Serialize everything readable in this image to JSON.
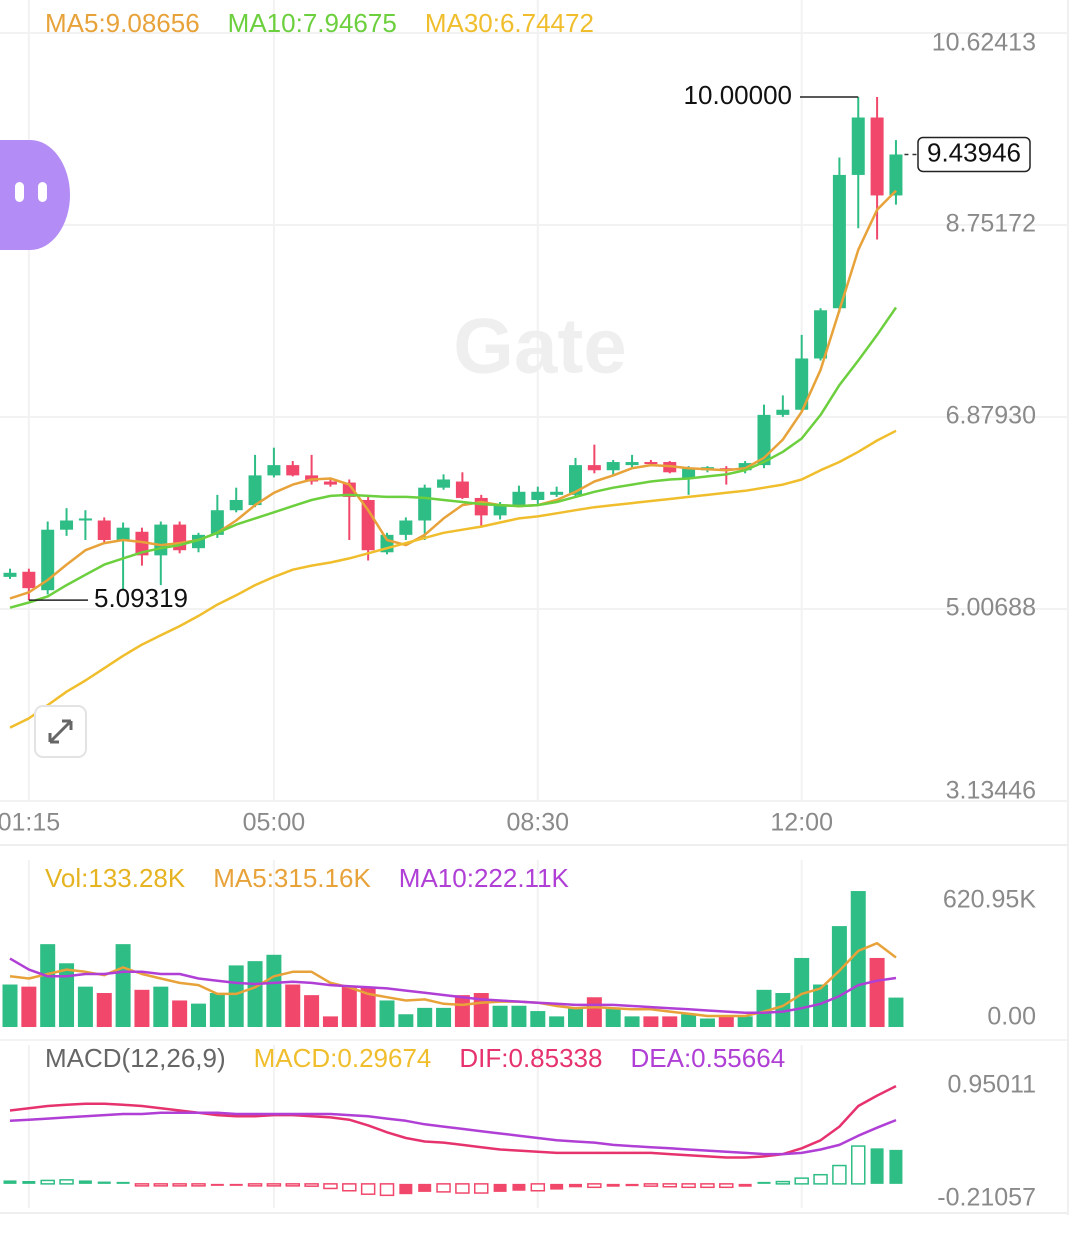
{
  "watermark": "Gate",
  "chart_data": [
    {
      "type": "candlestick",
      "categories": [
        null,
        "01:15",
        null,
        null,
        null,
        null,
        null,
        null,
        null,
        null,
        null,
        null,
        null,
        null,
        "05:00",
        null,
        null,
        null,
        null,
        null,
        null,
        null,
        null,
        null,
        null,
        null,
        null,
        null,
        "08:30",
        null,
        null,
        null,
        null,
        null,
        null,
        null,
        null,
        null,
        null,
        null,
        null,
        null,
        "12:00",
        null,
        null,
        null,
        null,
        null
      ],
      "open": [
        5.32,
        5.37,
        5.19,
        5.78,
        5.87,
        5.87,
        5.68,
        5.76,
        5.53,
        5.83,
        5.6,
        5.73,
        5.97,
        6.02,
        6.31,
        6.41,
        6.31,
        6.25,
        6.24,
        6.07,
        5.56,
        5.73,
        5.87,
        6.19,
        6.25,
        6.09,
        5.92,
        6.02,
        6.07,
        6.12,
        6.12,
        6.41,
        6.36,
        6.41,
        6.44,
        6.44,
        6.28,
        6.36,
        6.38,
        6.36,
        6.41,
        6.9,
        6.95,
        7.45,
        7.94,
        9.24,
        9.8,
        9.04
      ],
      "high": [
        5.4,
        5.4,
        5.86,
        5.99,
        5.97,
        5.9,
        5.85,
        5.8,
        5.86,
        5.86,
        5.75,
        6.12,
        6.19,
        6.51,
        6.58,
        6.45,
        6.51,
        6.28,
        6.27,
        6.1,
        5.75,
        5.9,
        6.22,
        6.32,
        6.34,
        6.12,
        6.05,
        6.21,
        6.2,
        6.2,
        6.48,
        6.61,
        6.46,
        6.51,
        6.46,
        6.45,
        6.4,
        6.4,
        6.4,
        6.45,
        7.0,
        7.09,
        7.68,
        7.94,
        9.41,
        10,
        10,
        9.58
      ],
      "low": [
        5.3,
        5.09319,
        5.15,
        5.72,
        5.68,
        5.66,
        5.19,
        5.43,
        5.24,
        5.55,
        5.56,
        5.7,
        5.95,
        6.0,
        6.29,
        6.3,
        6.22,
        6.2,
        5.68,
        5.48,
        5.54,
        5.68,
        5.68,
        6.17,
        6.08,
        5.8,
        5.88,
        6.0,
        6.02,
        6.1,
        6.1,
        6.33,
        6.3,
        6.38,
        6.4,
        6.33,
        6.12,
        6.34,
        6.22,
        6.33,
        6.38,
        6.88,
        6.93,
        7.43,
        7.9,
        8.72,
        8.61,
        8.95
      ],
      "close": [
        5.36,
        5.21,
        5.78,
        5.87,
        5.89,
        5.68,
        5.8,
        5.53,
        5.83,
        5.58,
        5.73,
        5.97,
        6.07,
        6.31,
        6.41,
        6.31,
        6.25,
        6.22,
        6.1,
        5.58,
        5.73,
        5.87,
        6.19,
        6.27,
        6.09,
        5.92,
        6.02,
        6.15,
        6.15,
        6.15,
        6.41,
        6.36,
        6.44,
        6.44,
        6.42,
        6.34,
        6.38,
        6.39,
        6.36,
        6.43,
        6.9,
        6.95,
        7.45,
        7.92,
        9.24,
        9.8,
        9.04,
        9.43946
      ],
      "up_color": "#2ebd85",
      "down_color": "#f0476a",
      "series": [
        {
          "name": "MA5:9.08656",
          "kind": "line",
          "color": "#e8a23a",
          "values": [
            5.11,
            5.17,
            5.29,
            5.44,
            5.58,
            5.65,
            5.68,
            5.66,
            5.63,
            5.65,
            5.68,
            5.75,
            5.87,
            6.02,
            6.14,
            6.22,
            6.27,
            6.28,
            6.22,
            5.97,
            5.68,
            5.63,
            5.73,
            5.89,
            6.02,
            6.05,
            6.02,
            6.01,
            6.02,
            6.07,
            6.15,
            6.25,
            6.31,
            6.38,
            6.41,
            6.4,
            6.38,
            6.37,
            6.36,
            6.38,
            6.48,
            6.66,
            6.93,
            7.34,
            7.92,
            8.51,
            8.9,
            9.08656
          ]
        },
        {
          "name": "MA10:7.94675",
          "kind": "line",
          "color": "#6ccf3e",
          "values": [
            5.02,
            5.07,
            5.13,
            5.24,
            5.34,
            5.44,
            5.5,
            5.56,
            5.6,
            5.63,
            5.68,
            5.75,
            5.83,
            5.89,
            5.95,
            6.01,
            6.07,
            6.11,
            6.12,
            6.11,
            6.1,
            6.1,
            6.09,
            6.07,
            6.05,
            6.03,
            6.02,
            6.01,
            6.02,
            6.05,
            6.1,
            6.15,
            6.19,
            6.22,
            6.25,
            6.27,
            6.28,
            6.3,
            6.32,
            6.36,
            6.44,
            6.54,
            6.67,
            6.9,
            7.19,
            7.43,
            7.68,
            7.94675
          ]
        },
        {
          "name": "MA30:6.74472",
          "kind": "line",
          "color": "#f0be2c",
          "values": [
            3.85,
            3.94,
            4.07,
            4.2,
            4.31,
            4.43,
            4.55,
            4.66,
            4.75,
            4.84,
            4.94,
            5.05,
            5.14,
            5.24,
            5.32,
            5.39,
            5.43,
            5.46,
            5.5,
            5.55,
            5.6,
            5.65,
            5.7,
            5.75,
            5.78,
            5.81,
            5.85,
            5.89,
            5.91,
            5.94,
            5.97,
            6.0,
            6.02,
            6.04,
            6.06,
            6.08,
            6.1,
            6.12,
            6.14,
            6.16,
            6.19,
            6.22,
            6.27,
            6.36,
            6.44,
            6.54,
            6.65,
            6.74472
          ]
        }
      ],
      "ylim": [
        3.13446,
        10.62413
      ],
      "yticks": [
        10.62413,
        8.75172,
        {
          "value": 6.8793,
          "label": "6.87930"
        },
        5.00688,
        3.13446
      ],
      "grid": true,
      "high_label": {
        "value": 10,
        "label": "10.00000"
      },
      "low_label": 5.09319,
      "last_price": 9.43946
    },
    {
      "type": "bar",
      "series": [
        {
          "name": "Vol:133.28K",
          "kind": "bar",
          "color": "#e6b422",
          "values": [
            192.6,
            182.9,
            375.5,
            288.8,
            182.9,
            154.0,
            375.5,
            168.5,
            182.9,
            120.3,
            105.9,
            154.0,
            279.2,
            298.5,
            327.3,
            192.6,
            144.4,
            48.1,
            182.9,
            182.9,
            120.3,
            57.8,
            86.7,
            86.7,
            144.4,
            154.0,
            96.3,
            96.3,
            72.2,
            48.1,
            86.7,
            134.8,
            86.7,
            48.1,
            48.1,
            48.1,
            57.8,
            38.5,
            48.1,
            48.1,
            168.5,
            154.0,
            312.9,
            192.6,
            457.3,
            616.2,
            312.9,
            133.28
          ]
        },
        {
          "name": "MA5:315.16K",
          "kind": "line",
          "color": "#e8a23a",
          "values": [
            230,
            220,
            240,
            260,
            250,
            235,
            270,
            240,
            220,
            200,
            190,
            150,
            150,
            180,
            230,
            250,
            250,
            200,
            180,
            150,
            135,
            120,
            125,
            105,
            100,
            110,
            115,
            115,
            110,
            95,
            85,
            90,
            85,
            80,
            80,
            70,
            60,
            50,
            50,
            50,
            70,
            95,
            150,
            175,
            255,
            345,
            380,
            315.16
          ]
        },
        {
          "name": "MA10:222.11K",
          "kind": "line",
          "color": "#b03fd6",
          "values": [
            310,
            260,
            230,
            230,
            240,
            240,
            250,
            250,
            240,
            240,
            220,
            210,
            200,
            195,
            200,
            205,
            200,
            190,
            185,
            180,
            175,
            165,
            155,
            145,
            135,
            125,
            120,
            115,
            110,
            105,
            100,
            100,
            100,
            95,
            90,
            85,
            80,
            75,
            70,
            65,
            65,
            70,
            85,
            105,
            140,
            190,
            210,
            222.11
          ]
        }
      ],
      "ylim": [
        0,
        620.95
      ],
      "yticks": [
        {
          "value": 620.95,
          "label": "620.95K"
        },
        {
          "value": 0,
          "label": "0.00"
        }
      ],
      "grid": false
    },
    {
      "type": "macd",
      "title": "MACD(12,26,9)",
      "series": [
        {
          "name": "MACD:0.29674",
          "kind": "histogram",
          "color": "#f0be2c",
          "values": [
            0.03,
            0.025,
            0.03,
            0.035,
            0.03,
            0.02,
            0.01,
            -0.01,
            -0.01,
            -0.015,
            -0.015,
            -0.01,
            -0.005,
            -0.005,
            -0.01,
            -0.015,
            -0.02,
            -0.04,
            -0.06,
            -0.09,
            -0.1,
            -0.09,
            -0.07,
            -0.07,
            -0.08,
            -0.08,
            -0.07,
            -0.06,
            -0.06,
            -0.05,
            -0.03,
            -0.03,
            -0.025,
            -0.02,
            -0.02,
            -0.025,
            -0.03,
            -0.03,
            -0.03,
            -0.025,
            0.005,
            0.02,
            0.05,
            0.08,
            0.16,
            0.33,
            0.31,
            0.29674
          ]
        },
        {
          "name": "DIF:0.85338",
          "kind": "line",
          "color": "#e6336e",
          "values": [
            0.64,
            0.66,
            0.68,
            0.69,
            0.7,
            0.7,
            0.69,
            0.68,
            0.66,
            0.64,
            0.62,
            0.6,
            0.59,
            0.59,
            0.6,
            0.6,
            0.59,
            0.58,
            0.56,
            0.51,
            0.45,
            0.4,
            0.37,
            0.36,
            0.34,
            0.32,
            0.3,
            0.29,
            0.28,
            0.27,
            0.27,
            0.27,
            0.27,
            0.27,
            0.27,
            0.26,
            0.25,
            0.24,
            0.23,
            0.23,
            0.24,
            0.26,
            0.31,
            0.38,
            0.5,
            0.68,
            0.77,
            0.85338
          ]
        },
        {
          "name": "DEA:0.55664",
          "kind": "line",
          "color": "#b03fd6",
          "values": [
            0.55,
            0.56,
            0.57,
            0.58,
            0.59,
            0.6,
            0.61,
            0.61,
            0.62,
            0.62,
            0.62,
            0.62,
            0.61,
            0.61,
            0.61,
            0.61,
            0.61,
            0.61,
            0.6,
            0.59,
            0.57,
            0.55,
            0.52,
            0.5,
            0.48,
            0.46,
            0.44,
            0.42,
            0.4,
            0.38,
            0.37,
            0.36,
            0.34,
            0.33,
            0.32,
            0.31,
            0.3,
            0.29,
            0.28,
            0.27,
            0.26,
            0.26,
            0.27,
            0.3,
            0.34,
            0.42,
            0.49,
            0.55664
          ]
        }
      ],
      "ylim": [
        -0.21057,
        0.95011
      ],
      "yticks": [
        0.95011,
        -0.21057
      ],
      "grid": false
    }
  ]
}
